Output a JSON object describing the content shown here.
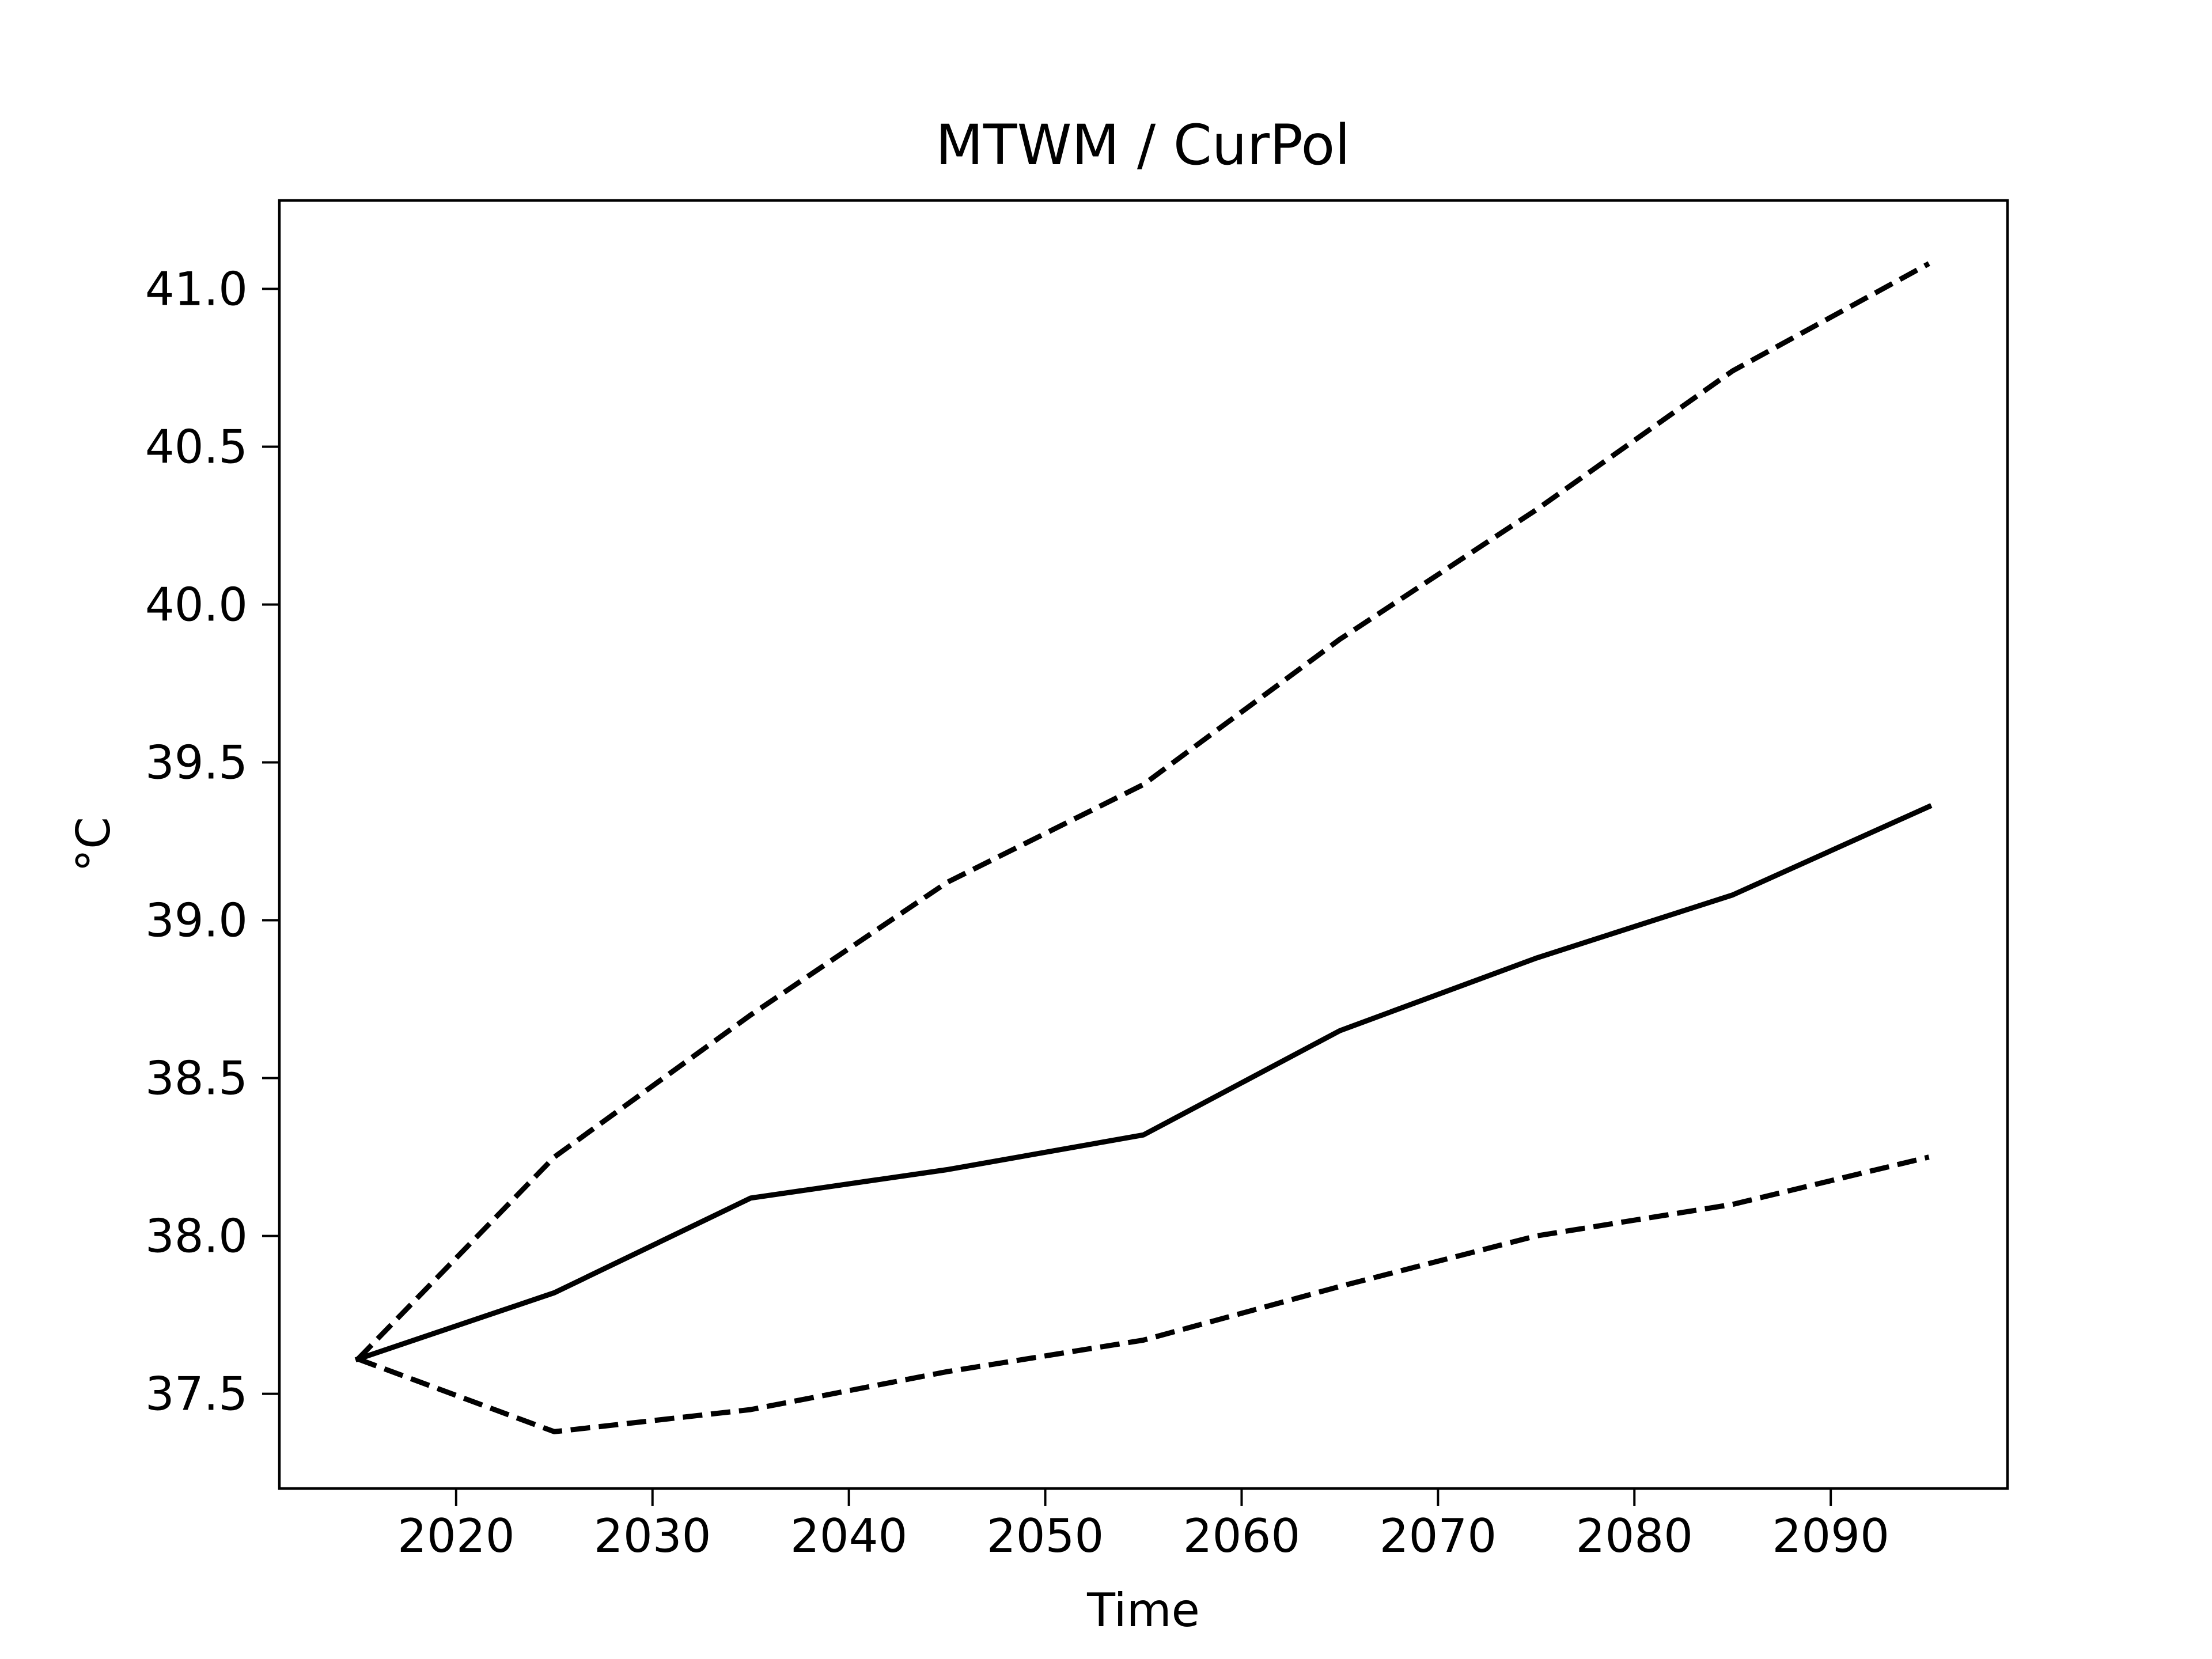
{
  "chart_data": {
    "type": "line",
    "title": "MTWM / CurPol",
    "xlabel": "Time",
    "ylabel": "°C",
    "xlim": [
      2011,
      2099
    ],
    "ylim": [
      37.2,
      41.28
    ],
    "xticks": [
      2020,
      2030,
      2040,
      2050,
      2060,
      2070,
      2080,
      2090
    ],
    "yticks": [
      "37.5",
      "38.0",
      "38.5",
      "39.0",
      "39.5",
      "40.0",
      "40.5",
      "41.0"
    ],
    "grid": false,
    "x": [
      2015,
      2025,
      2035,
      2045,
      2055,
      2065,
      2075,
      2085,
      2095
    ],
    "series": [
      {
        "style": "dashed",
        "color": "#000000",
        "values": [
          37.61,
          38.25,
          38.7,
          39.12,
          39.43,
          39.89,
          40.3,
          40.74,
          41.08
        ]
      },
      {
        "style": "solid",
        "color": "#000000",
        "values": [
          37.61,
          37.82,
          38.12,
          38.21,
          38.32,
          38.65,
          38.88,
          39.08,
          39.36
        ]
      },
      {
        "style": "dashed",
        "color": "#000000",
        "values": [
          37.61,
          37.38,
          37.45,
          37.57,
          37.67,
          37.84,
          38.0,
          38.1,
          38.25
        ]
      }
    ]
  }
}
